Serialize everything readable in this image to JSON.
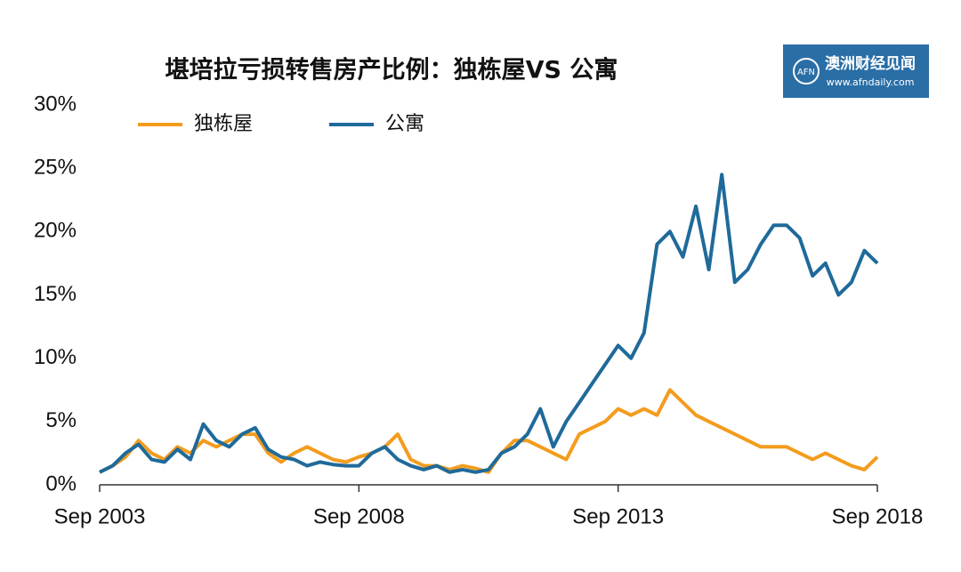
{
  "chart_data": {
    "type": "line",
    "title": "堪培拉亏损转售房产比例：独栋屋VS 公寓",
    "categories": [
      "Sep 2003",
      null,
      null,
      null,
      null,
      null,
      null,
      null,
      null,
      null,
      null,
      null,
      null,
      null,
      null,
      null,
      null,
      null,
      null,
      null,
      "Sep 2008",
      null,
      null,
      null,
      null,
      null,
      null,
      null,
      null,
      null,
      null,
      null,
      null,
      null,
      null,
      null,
      null,
      null,
      null,
      null,
      "Sep 2013",
      null,
      null,
      null,
      null,
      null,
      null,
      null,
      null,
      null,
      null,
      null,
      null,
      null,
      null,
      null,
      null,
      null,
      null,
      null,
      "Sep 2018"
    ],
    "series": [
      {
        "name": "独栋屋",
        "color": "#f39c1e",
        "values": [
          1.0,
          1.5,
          2.2,
          3.5,
          2.5,
          2.0,
          3.0,
          2.5,
          3.5,
          3.0,
          3.5,
          4.0,
          4.0,
          2.5,
          1.8,
          2.5,
          3.0,
          2.5,
          2.0,
          1.8,
          2.2,
          2.5,
          3.0,
          4.0,
          2.0,
          1.5,
          1.5,
          1.2,
          1.5,
          1.3,
          1.0,
          2.5,
          3.5,
          3.5,
          3.0,
          2.5,
          2.0,
          4.0,
          4.5,
          5.0,
          6.0,
          5.5,
          6.0,
          5.5,
          7.5,
          6.5,
          5.5,
          5.0,
          4.5,
          4.0,
          3.5,
          3.0,
          3.0,
          3.0,
          2.5,
          2.0,
          2.5,
          2.0,
          1.5,
          1.2,
          2.2
        ]
      },
      {
        "name": "公寓",
        "color": "#1f6a9a",
        "values": [
          1.0,
          1.5,
          2.5,
          3.2,
          2.0,
          1.8,
          2.8,
          2.0,
          4.8,
          3.5,
          3.0,
          4.0,
          4.5,
          2.8,
          2.2,
          2.0,
          1.5,
          1.8,
          1.6,
          1.5,
          1.5,
          2.5,
          3.0,
          2.0,
          1.5,
          1.2,
          1.5,
          1.0,
          1.2,
          1.0,
          1.2,
          2.5,
          3.0,
          4.0,
          6.0,
          3.0,
          5.0,
          6.5,
          8.0,
          9.5,
          11.0,
          10.0,
          12.0,
          19.0,
          20.0,
          18.0,
          22.0,
          17.0,
          24.5,
          16.0,
          17.0,
          19.0,
          20.5,
          20.5,
          19.5,
          16.5,
          17.5,
          15.0,
          16.0,
          18.5,
          17.5
        ]
      }
    ],
    "ylim": [
      0,
      30
    ],
    "yticks": [
      {
        "value": 0,
        "label": "0%"
      },
      {
        "value": 5,
        "label": "5%"
      },
      {
        "value": 10,
        "label": "10%"
      },
      {
        "value": 15,
        "label": "15%"
      },
      {
        "value": 20,
        "label": "20%"
      },
      {
        "value": 25,
        "label": "25%"
      },
      {
        "value": 30,
        "label": "30%"
      }
    ],
    "grid": false,
    "legend": "top-left"
  },
  "logo": {
    "name": "澳洲财经见闻",
    "url": "www.afndaily.com",
    "mark": "AFN"
  }
}
